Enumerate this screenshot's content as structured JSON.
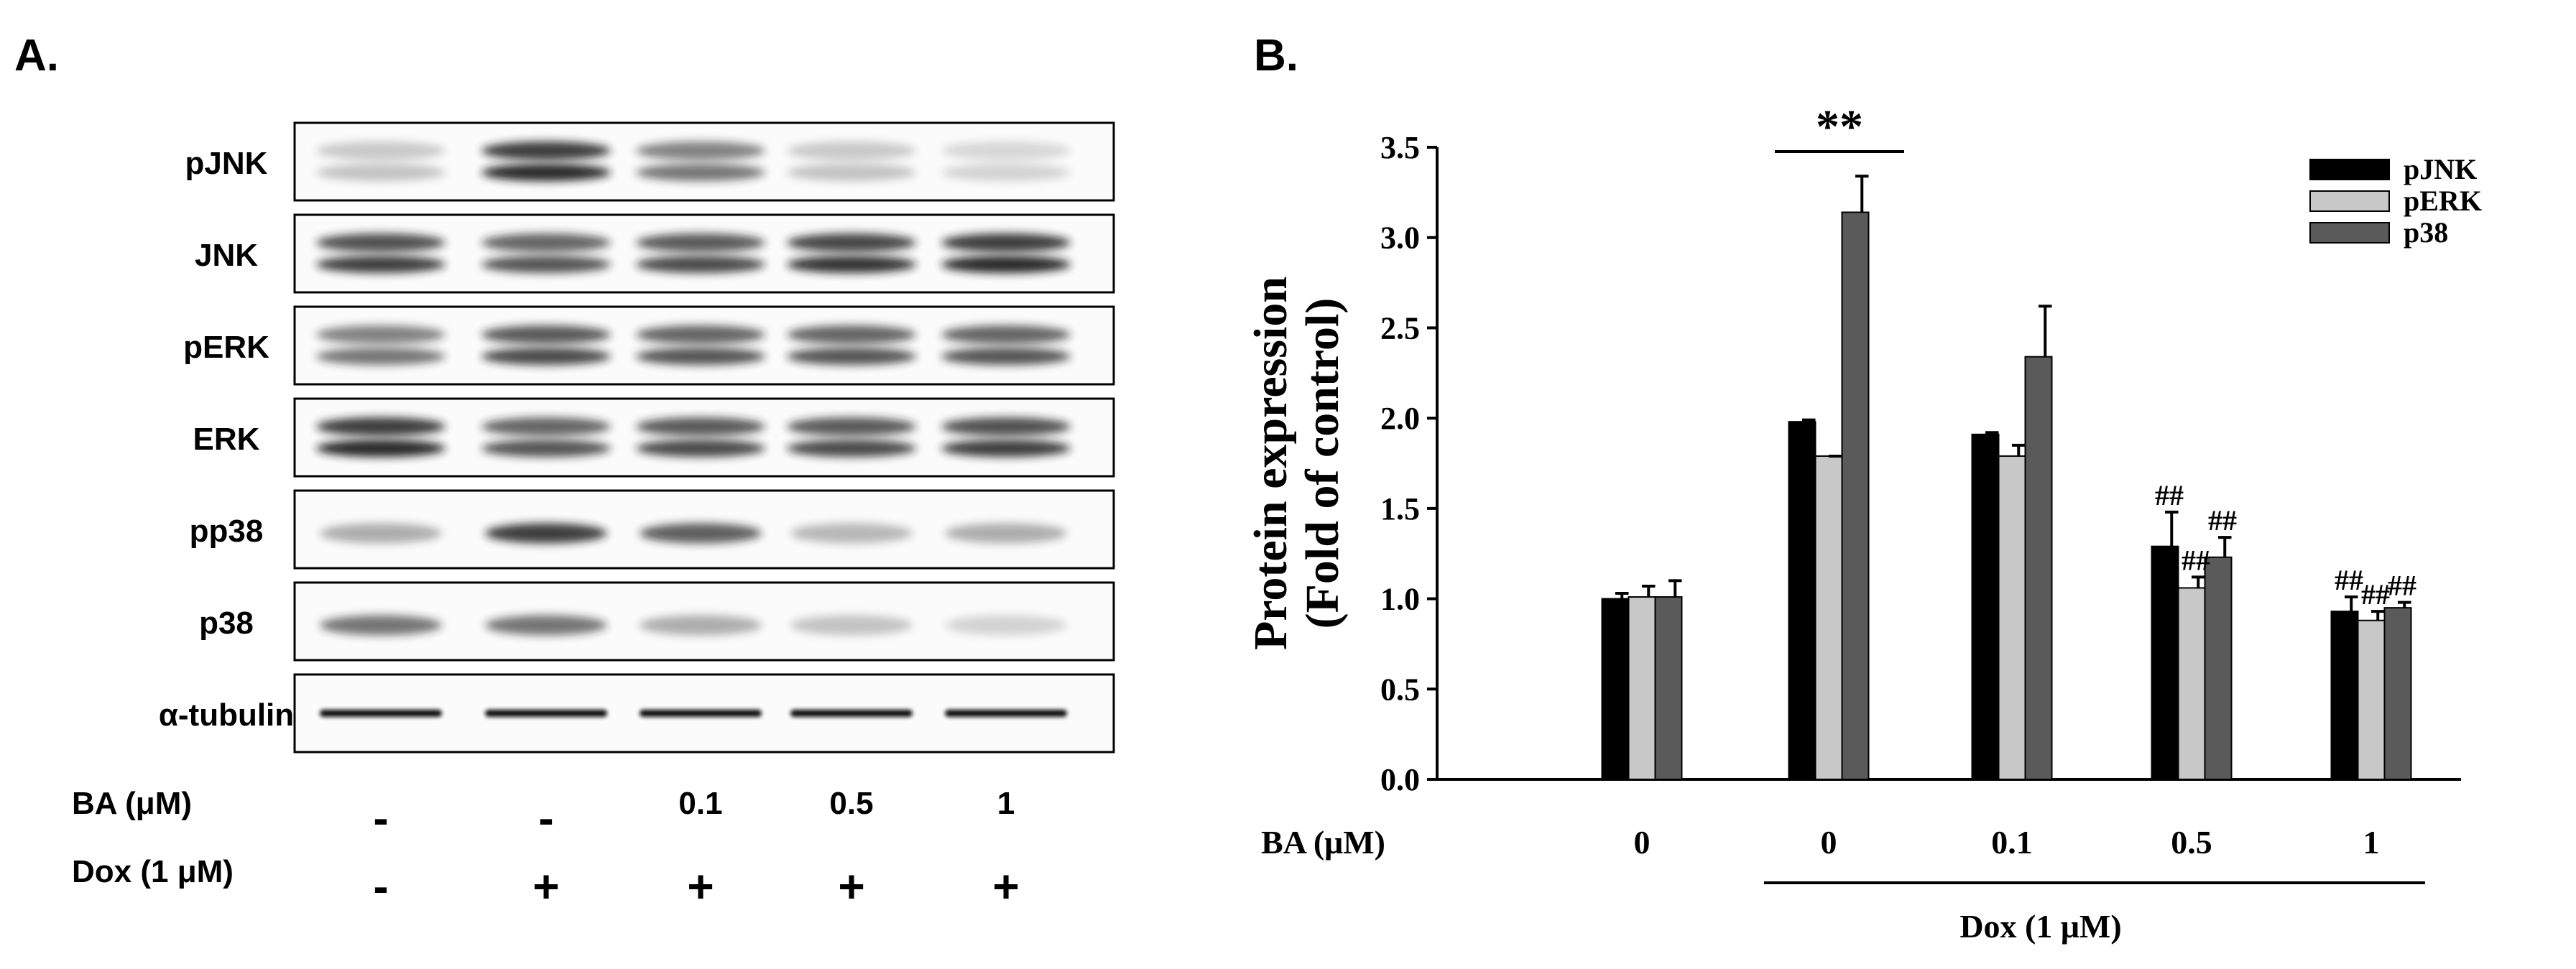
{
  "panel_a": {
    "label": "A.",
    "blots": [
      {
        "name": "pJNK",
        "intensity": [
          0.25,
          0.95,
          0.6,
          0.25,
          0.18
        ],
        "double": true
      },
      {
        "name": "JNK",
        "intensity": [
          0.85,
          0.75,
          0.8,
          0.9,
          0.95
        ],
        "double": true
      },
      {
        "name": "pERK",
        "intensity": [
          0.6,
          0.8,
          0.75,
          0.75,
          0.75
        ],
        "double": true
      },
      {
        "name": "ERK",
        "intensity": [
          0.95,
          0.75,
          0.8,
          0.8,
          0.85
        ],
        "double": true
      },
      {
        "name": "pp38",
        "intensity": [
          0.35,
          0.85,
          0.7,
          0.3,
          0.35
        ],
        "double": false
      },
      {
        "name": "p38",
        "intensity": [
          0.6,
          0.6,
          0.35,
          0.25,
          0.18
        ],
        "double": false
      },
      {
        "name": "α-tubulin",
        "intensity": [
          1.0,
          1.0,
          1.0,
          1.0,
          1.0
        ],
        "double": false
      }
    ],
    "treatments": [
      {
        "label": "BA (μM)",
        "values": [
          "-",
          "-",
          "0.1",
          "0.5",
          "1"
        ]
      },
      {
        "label": "Dox (1 μM)",
        "values": [
          "-",
          "+",
          "+",
          "+",
          "+"
        ]
      }
    ]
  },
  "panel_b": {
    "label": "B.",
    "ba_label": "BA (μM)",
    "dox_label": "Dox (1 μM)",
    "significance": [
      {
        "text": "**",
        "group": 1,
        "series": "all"
      },
      {
        "text": "##",
        "group": 3,
        "series": 0
      },
      {
        "text": "##",
        "group": 3,
        "series": 1
      },
      {
        "text": "##",
        "group": 3,
        "series": 2
      },
      {
        "text": "##",
        "group": 4,
        "series": 0
      },
      {
        "text": "##",
        "group": 4,
        "series": 1
      },
      {
        "text": "##",
        "group": 4,
        "series": 2
      }
    ],
    "colors": {
      "pJNK": "#000000",
      "pERK": "#c8c8c8",
      "p38": "#5a5a5a"
    }
  },
  "chart_data": {
    "type": "bar",
    "categories": [
      "0",
      "0",
      "0.1",
      "0.5",
      "1"
    ],
    "series": [
      {
        "name": "pJNK",
        "values": [
          1.0,
          1.98,
          1.91,
          1.29,
          0.93
        ],
        "errors": [
          0.03,
          0.01,
          0.01,
          0.19,
          0.08
        ]
      },
      {
        "name": "pERK",
        "values": [
          1.01,
          1.79,
          1.79,
          1.06,
          0.88
        ],
        "errors": [
          0.06,
          0.0,
          0.06,
          0.06,
          0.05
        ]
      },
      {
        "name": "p38",
        "values": [
          1.01,
          3.14,
          2.34,
          1.23,
          0.95
        ],
        "errors": [
          0.09,
          0.2,
          0.28,
          0.11,
          0.03
        ]
      }
    ],
    "ylabel": [
      "Protein expression",
      "(Fold of control)"
    ],
    "xlabel": "",
    "ylim": [
      0,
      3.5
    ],
    "yticks": [
      "0.0",
      "0.5",
      "1.0",
      "1.5",
      "2.0",
      "2.5",
      "3.0",
      "3.5"
    ],
    "legend": "top-right",
    "grid": false
  }
}
